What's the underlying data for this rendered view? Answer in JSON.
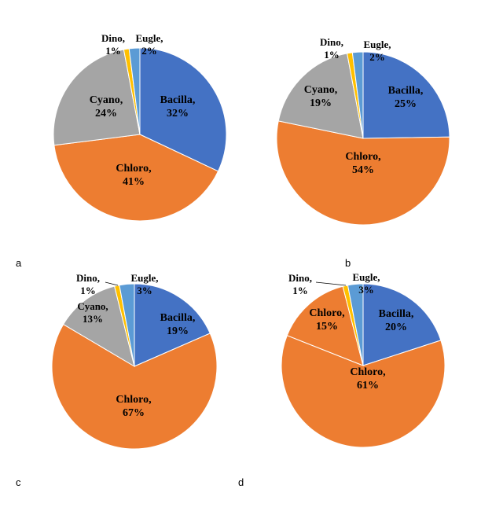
{
  "colors": {
    "Bacilla": "#4472C4",
    "Chloro": "#ED7D31",
    "Cyano": "#A5A5A5",
    "Dino": "#FFC000",
    "Eugle": "#5B9BD5"
  },
  "chart_data": [
    {
      "type": "pie",
      "panel_label": "a",
      "slices": [
        {
          "name": "Bacilla",
          "value": 32,
          "label_text": "32%"
        },
        {
          "name": "Chloro",
          "value": 41,
          "label_text": "41%"
        },
        {
          "name": "Cyano",
          "value": 24,
          "label_text": "24%"
        },
        {
          "name": "Dino",
          "value": 1,
          "label_text": "1%"
        },
        {
          "name": "Eugle",
          "value": 2,
          "label_text": "2%"
        }
      ]
    },
    {
      "type": "pie",
      "panel_label": "b",
      "slices": [
        {
          "name": "Bacilla",
          "value": 25,
          "label_text": "25%"
        },
        {
          "name": "Chloro",
          "value": 54,
          "label_text": "54%"
        },
        {
          "name": "Cyano",
          "value": 19,
          "label_text": "19%"
        },
        {
          "name": "Dino",
          "value": 1,
          "label_text": "1%"
        },
        {
          "name": "Eugle",
          "value": 2,
          "label_text": "2%"
        }
      ]
    },
    {
      "type": "pie",
      "panel_label": "c",
      "slices": [
        {
          "name": "Bacilla",
          "value": 19,
          "label_text": "19%"
        },
        {
          "name": "Chloro",
          "value": 67,
          "label_text": "67%"
        },
        {
          "name": "Cyano",
          "value": 13,
          "label_text": "13%"
        },
        {
          "name": "Dino",
          "value": 1,
          "label_text": "1%"
        },
        {
          "name": "Eugle",
          "value": 3,
          "label_text": "3%"
        }
      ]
    },
    {
      "type": "pie",
      "panel_label": "d",
      "slices": [
        {
          "name": "Bacilla",
          "value": 20,
          "label_text": "20%"
        },
        {
          "name": "Chloro",
          "value": 61,
          "label_text": "61%"
        },
        {
          "name": "Chloro",
          "value": 15,
          "label_text": "15%"
        },
        {
          "name": "Dino",
          "value": 1,
          "label_text": "1%"
        },
        {
          "name": "Eugle",
          "value": 3,
          "label_text": "3%"
        }
      ]
    }
  ]
}
